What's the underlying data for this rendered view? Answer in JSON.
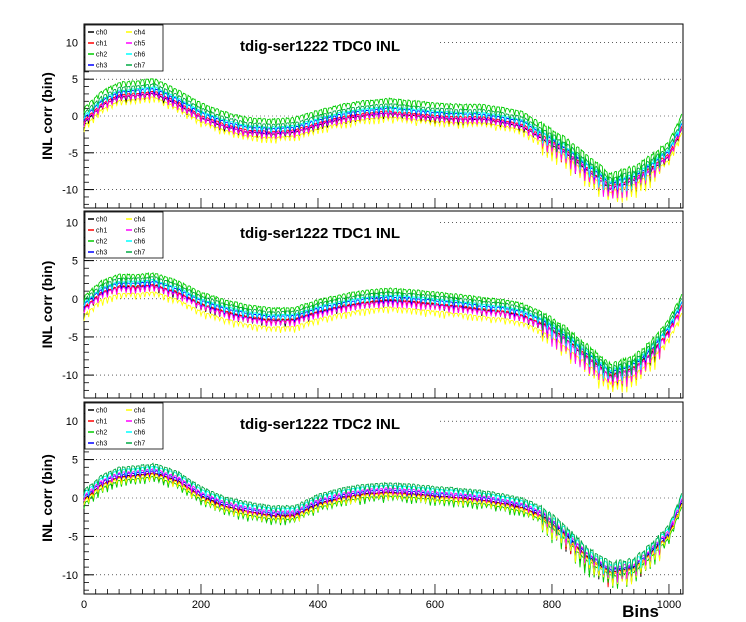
{
  "colors": {
    "ch0": "#000000",
    "ch1": "#ff0000",
    "ch2": "#00cc00",
    "ch3": "#0000ff",
    "ch4": "#ffff00",
    "ch5": "#ff00ff",
    "ch6": "#00ffff",
    "ch7": "#00aa44"
  },
  "x_axis": {
    "label": "Bins",
    "range": [
      0,
      1024
    ],
    "ticks": [
      0,
      200,
      400,
      600,
      800,
      1000
    ]
  },
  "chart_data": [
    {
      "type": "line",
      "title": "tdig-ser1222 TDC0 INL",
      "ylabel": "INL corr (bin)",
      "ylim": [
        -12.5,
        12.5
      ],
      "yticks": [
        10,
        5,
        0,
        -5,
        -10
      ],
      "grid": "horizontal-dotted",
      "legend": {
        "placement": "top-left",
        "entries": [
          "ch0",
          "ch1",
          "ch2",
          "ch3",
          "ch4",
          "ch5",
          "ch6",
          "ch7"
        ]
      },
      "base_curve": {
        "x": [
          0,
          30,
          60,
          90,
          120,
          160,
          200,
          240,
          280,
          320,
          360,
          400,
          440,
          480,
          520,
          560,
          600,
          640,
          680,
          720,
          750,
          780,
          820,
          860,
          900,
          940,
          970,
          1000,
          1024
        ],
        "y": [
          -0.5,
          1.8,
          3.0,
          3.2,
          3.5,
          2.0,
          0.2,
          -1.0,
          -1.8,
          -2.0,
          -1.8,
          -0.8,
          0.0,
          0.5,
          0.8,
          0.5,
          0.2,
          0.0,
          0.0,
          -0.5,
          -1.0,
          -2.5,
          -4.5,
          -7.0,
          -9.5,
          -8.5,
          -7.0,
          -5.0,
          -1.0
        ]
      },
      "channel_offsets": [
        -0.5,
        -0.2,
        1.5,
        0.2,
        -1.0,
        -0.4,
        0.4,
        0.8
      ]
    },
    {
      "type": "line",
      "title": "tdig-ser1222 TDC1 INL",
      "ylabel": "INL corr (bin)",
      "ylim": [
        -13,
        11.5
      ],
      "yticks": [
        10,
        5,
        0,
        -5,
        -10
      ],
      "grid": "horizontal-dotted",
      "legend": {
        "placement": "top-left",
        "entries": [
          "ch0",
          "ch1",
          "ch2",
          "ch3",
          "ch4",
          "ch5",
          "ch6",
          "ch7"
        ]
      },
      "base_curve": {
        "x": [
          0,
          30,
          60,
          90,
          120,
          160,
          200,
          240,
          280,
          320,
          360,
          400,
          440,
          480,
          520,
          560,
          600,
          640,
          680,
          720,
          750,
          780,
          820,
          860,
          900,
          940,
          970,
          1000,
          1024
        ],
        "y": [
          -1.0,
          1.0,
          1.8,
          1.8,
          2.0,
          1.0,
          -0.5,
          -1.5,
          -2.2,
          -2.6,
          -2.5,
          -1.5,
          -0.8,
          -0.3,
          0.0,
          -0.2,
          -0.5,
          -0.8,
          -1.2,
          -1.5,
          -2.0,
          -3.0,
          -5.0,
          -7.5,
          -10.0,
          -9.0,
          -7.0,
          -4.0,
          -0.5
        ]
      },
      "channel_offsets": [
        -0.3,
        -0.2,
        1.3,
        0.2,
        -1.2,
        -0.4,
        0.4,
        0.8
      ]
    },
    {
      "type": "line",
      "title": "tdig-ser1222 TDC2 INL",
      "ylabel": "INL corr (bin)",
      "ylim": [
        -12.5,
        12.5
      ],
      "yticks": [
        10,
        5,
        0,
        -5,
        -10
      ],
      "grid": "horizontal-dotted",
      "legend": {
        "placement": "top-left",
        "entries": [
          "ch0",
          "ch1",
          "ch2",
          "ch3",
          "ch4",
          "ch5",
          "ch6",
          "ch7"
        ]
      },
      "base_curve": {
        "x": [
          0,
          30,
          60,
          90,
          120,
          160,
          200,
          240,
          280,
          320,
          360,
          400,
          440,
          480,
          520,
          560,
          600,
          640,
          680,
          720,
          750,
          780,
          820,
          860,
          900,
          940,
          970,
          1000,
          1024
        ],
        "y": [
          0.0,
          2.0,
          3.0,
          3.2,
          3.5,
          2.5,
          0.5,
          -0.8,
          -1.5,
          -2.0,
          -2.0,
          -0.5,
          0.3,
          0.8,
          1.0,
          0.8,
          0.5,
          0.3,
          0.0,
          -0.5,
          -1.0,
          -2.0,
          -4.5,
          -7.5,
          -9.5,
          -9.0,
          -7.0,
          -4.5,
          0.0
        ]
      },
      "channel_offsets": [
        -0.3,
        -0.4,
        -0.8,
        0.0,
        -0.5,
        0.2,
        0.6,
        0.9
      ]
    }
  ]
}
